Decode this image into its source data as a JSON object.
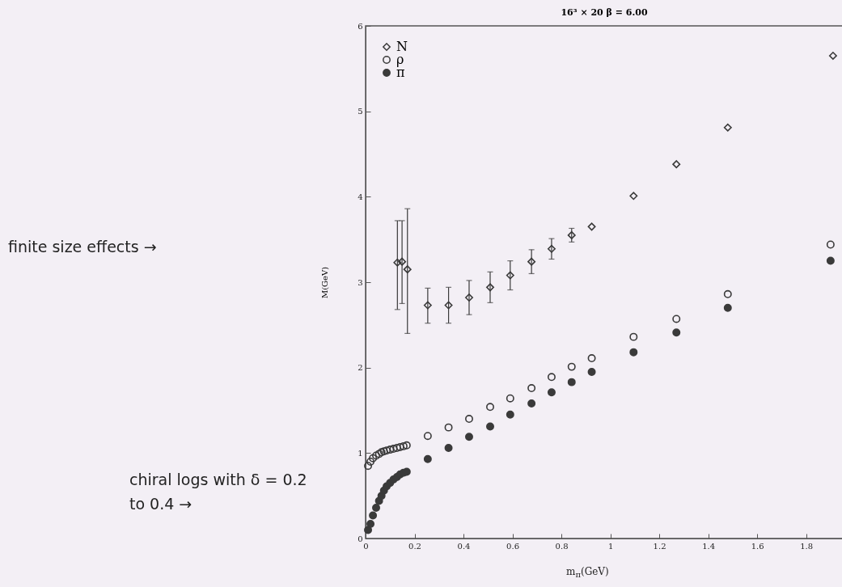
{
  "chart_data": {
    "type": "scatter",
    "title": "16³ × 20   β = 6.00",
    "xlabel": "m$_{π}$(GeV)",
    "ylabel": "M(GeV)",
    "annotations": [
      "finite size effects →",
      "chiral logs with δ = 0.2 to 0.4 →"
    ],
    "xlim": [
      0,
      1.95
    ],
    "xticks": [
      0,
      0.2,
      0.4,
      0.6,
      0.8,
      1,
      1.2,
      1.4,
      1.6,
      1.8
    ],
    "ylim": [
      0,
      6
    ],
    "yticks": [
      0,
      1,
      2,
      3,
      4,
      5,
      6
    ],
    "grid": false,
    "legend": "top left",
    "series": [
      {
        "name": "N",
        "color": "#3a3a3a",
        "marker": "diamond",
        "x": [
          0.13,
          0.149,
          0.171,
          0.254,
          0.339,
          0.423,
          0.509,
          0.591,
          0.678,
          0.76,
          0.842,
          0.924,
          1.095,
          1.27,
          1.48,
          1.91
        ],
        "values": [
          3.23,
          3.24,
          3.15,
          2.73,
          2.73,
          2.82,
          2.94,
          3.08,
          3.24,
          3.39,
          3.55,
          3.65,
          4.01,
          4.38,
          4.81,
          5.65
        ],
        "errors": [
          [
            2.68,
            3.72
          ],
          [
            2.75,
            3.72
          ],
          [
            2.4,
            3.86
          ],
          [
            2.52,
            2.93
          ],
          [
            2.52,
            2.94
          ],
          [
            2.62,
            3.02
          ],
          [
            2.76,
            3.12
          ],
          [
            2.91,
            3.25
          ],
          [
            3.1,
            3.38
          ],
          [
            3.27,
            3.51
          ],
          [
            3.47,
            3.63
          ],
          null,
          null,
          null,
          null,
          null
        ]
      },
      {
        "name": "ρ",
        "color": "#3a3a3a",
        "marker": "circle",
        "x": [
          0.01,
          0.02,
          0.03,
          0.043,
          0.055,
          0.065,
          0.075,
          0.086,
          0.1,
          0.114,
          0.128,
          0.141,
          0.155,
          0.168,
          0.254,
          0.339,
          0.423,
          0.509,
          0.591,
          0.678,
          0.76,
          0.842,
          0.924,
          1.095,
          1.27,
          1.48,
          1.9
        ],
        "values": [
          0.85,
          0.9,
          0.94,
          0.97,
          0.99,
          1.01,
          1.02,
          1.03,
          1.04,
          1.05,
          1.06,
          1.07,
          1.08,
          1.09,
          1.2,
          1.3,
          1.4,
          1.54,
          1.64,
          1.76,
          1.89,
          2.01,
          2.11,
          2.36,
          2.57,
          2.86,
          3.44
        ]
      },
      {
        "name": "π",
        "color": "#3a3a3a",
        "marker": "circle",
        "x": [
          0.01,
          0.02,
          0.03,
          0.043,
          0.055,
          0.065,
          0.075,
          0.086,
          0.1,
          0.114,
          0.128,
          0.141,
          0.155,
          0.168,
          0.254,
          0.339,
          0.423,
          0.509,
          0.591,
          0.678,
          0.76,
          0.842,
          0.924,
          1.095,
          1.27,
          1.48,
          1.9
        ],
        "values": [
          0.1,
          0.17,
          0.27,
          0.36,
          0.44,
          0.5,
          0.56,
          0.61,
          0.65,
          0.69,
          0.72,
          0.75,
          0.77,
          0.78,
          0.93,
          1.06,
          1.19,
          1.31,
          1.45,
          1.58,
          1.71,
          1.83,
          1.95,
          2.18,
          2.41,
          2.7,
          3.25
        ]
      }
    ]
  }
}
